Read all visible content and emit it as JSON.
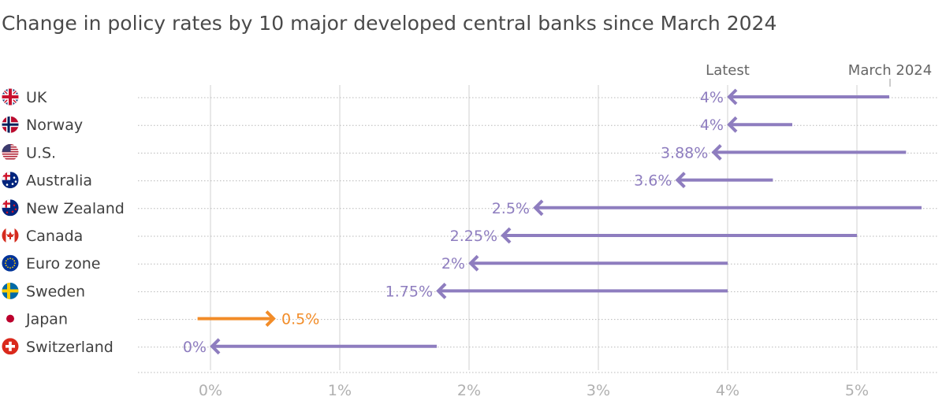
{
  "chart_data": {
    "type": "arrow-range",
    "title": "Change in policy rates by 10 major developed central banks since March 2024",
    "header_latest": "Latest",
    "header_start": "March 2024",
    "xlim": [
      0,
      5.5
    ],
    "x_ticks": [
      {
        "value": 0,
        "label": "0%"
      },
      {
        "value": 1,
        "label": "1%"
      },
      {
        "value": 2,
        "label": "2%"
      },
      {
        "value": 3,
        "label": "3%"
      },
      {
        "value": 4,
        "label": "4%"
      },
      {
        "value": 5,
        "label": "5%"
      }
    ],
    "colors": {
      "cut": "#8e7dbf",
      "hike": "#f28c28",
      "grid": "#d0d0d0",
      "dots": "#b8b8b8"
    },
    "series": [
      {
        "country": "UK",
        "flag": "uk-flag",
        "march_2024": 5.25,
        "latest": 4.0,
        "label": "4%"
      },
      {
        "country": "Norway",
        "flag": "norway-flag",
        "march_2024": 4.5,
        "latest": 4.0,
        "label": "4%"
      },
      {
        "country": "U.S.",
        "flag": "us-flag",
        "march_2024": 5.38,
        "latest": 3.88,
        "label": "3.88%"
      },
      {
        "country": "Australia",
        "flag": "australia-flag",
        "march_2024": 4.35,
        "latest": 3.6,
        "label": "3.6%"
      },
      {
        "country": "New Zealand",
        "flag": "new-zealand-flag",
        "march_2024": 5.5,
        "latest": 2.5,
        "label": "2.5%"
      },
      {
        "country": "Canada",
        "flag": "canada-flag",
        "march_2024": 5.0,
        "latest": 2.25,
        "label": "2.25%"
      },
      {
        "country": "Euro zone",
        "flag": "euro-zone-flag",
        "march_2024": 4.0,
        "latest": 2.0,
        "label": "2%"
      },
      {
        "country": "Sweden",
        "flag": "sweden-flag",
        "march_2024": 4.0,
        "latest": 1.75,
        "label": "1.75%"
      },
      {
        "country": "Japan",
        "flag": "japan-flag",
        "march_2024": -0.1,
        "latest": 0.5,
        "label": "0.5%"
      },
      {
        "country": "Switzerland",
        "flag": "switzerland-flag",
        "march_2024": 1.75,
        "latest": 0.0,
        "label": "0%"
      }
    ]
  }
}
